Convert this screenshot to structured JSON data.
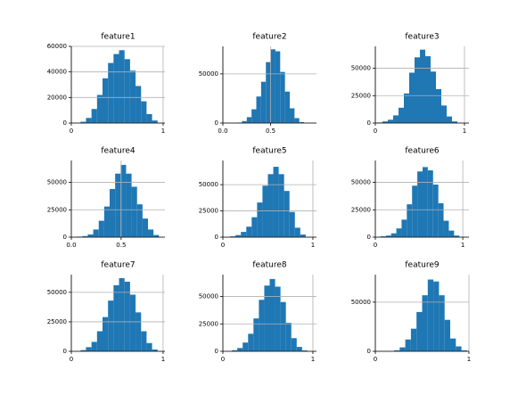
{
  "chart_data": [
    {
      "type": "histogram",
      "title": "feature1",
      "color": "#1f77b4",
      "grid": true,
      "bins": [
        0.1,
        0.16,
        0.22,
        0.28,
        0.34,
        0.4,
        0.46,
        0.52,
        0.58,
        0.64,
        0.7,
        0.76,
        0.82,
        0.88,
        0.94
      ],
      "values": [
        1000,
        4000,
        11000,
        22000,
        35000,
        47000,
        54000,
        57000,
        50000,
        41000,
        29000,
        17000,
        7000,
        2000
      ],
      "xlim": [
        0,
        1.02
      ],
      "xticks": [
        0,
        1
      ],
      "ylim": [
        0,
        60000
      ],
      "yticks": [
        0,
        20000,
        40000,
        60000
      ]
    },
    {
      "type": "histogram",
      "title": "feature2",
      "color": "#1f77b4",
      "grid": true,
      "bins": [
        0.15,
        0.2,
        0.25,
        0.3,
        0.35,
        0.4,
        0.45,
        0.5,
        0.55,
        0.6,
        0.65,
        0.7,
        0.75,
        0.8,
        0.85
      ],
      "values": [
        500,
        2000,
        6000,
        14000,
        27000,
        42000,
        62000,
        75000,
        73000,
        52000,
        32000,
        15000,
        5000,
        1000
      ],
      "xlim": [
        0,
        0.98
      ],
      "xticks": [
        {
          "value": 0,
          "label": "0.0"
        },
        0.5
      ],
      "ylim": [
        0,
        78000
      ],
      "yticks": [
        0,
        50000
      ]
    },
    {
      "type": "histogram",
      "title": "feature3",
      "color": "#1f77b4",
      "grid": true,
      "bins": [
        0.02,
        0.08,
        0.14,
        0.2,
        0.26,
        0.32,
        0.38,
        0.44,
        0.5,
        0.56,
        0.62,
        0.68,
        0.74,
        0.8,
        0.86,
        0.92
      ],
      "values": [
        500,
        1500,
        3000,
        7000,
        14000,
        27000,
        46000,
        60000,
        67000,
        61000,
        47000,
        31000,
        16000,
        6000,
        1500
      ],
      "xlim": [
        0,
        1.05
      ],
      "xticks": [
        0,
        1
      ],
      "ylim": [
        0,
        70000
      ],
      "yticks": [
        0,
        25000,
        50000
      ]
    },
    {
      "type": "histogram",
      "title": "feature4",
      "color": "#1f77b4",
      "grid": true,
      "bins": [
        0.055,
        0.11,
        0.165,
        0.22,
        0.275,
        0.33,
        0.385,
        0.44,
        0.495,
        0.55,
        0.605,
        0.66,
        0.715,
        0.77,
        0.825,
        0.88
      ],
      "values": [
        500,
        1000,
        2500,
        7000,
        15000,
        28000,
        44000,
        58000,
        66000,
        58000,
        46000,
        30000,
        17000,
        7000,
        2000
      ],
      "xlim": [
        0,
        0.94
      ],
      "xticks": [
        {
          "value": 0,
          "label": "0.0"
        },
        0.5
      ],
      "ylim": [
        0,
        70000
      ],
      "yticks": [
        0,
        25000,
        50000
      ]
    },
    {
      "type": "histogram",
      "title": "feature5",
      "color": "#1f77b4",
      "grid": true,
      "bins": [
        0.02,
        0.08,
        0.14,
        0.2,
        0.26,
        0.32,
        0.38,
        0.44,
        0.5,
        0.56,
        0.62,
        0.68,
        0.74,
        0.8,
        0.86,
        0.92
      ],
      "values": [
        300,
        800,
        2000,
        5000,
        10000,
        19000,
        33000,
        49000,
        60000,
        67000,
        60000,
        44000,
        24000,
        9000,
        2500
      ],
      "xlim": [
        0,
        1.04
      ],
      "xticks": [
        0,
        1
      ],
      "ylim": [
        0,
        73000
      ],
      "yticks": [
        0,
        25000,
        50000
      ]
    },
    {
      "type": "histogram",
      "title": "feature6",
      "color": "#1f77b4",
      "grid": true,
      "bins": [
        0.0,
        0.06,
        0.12,
        0.18,
        0.24,
        0.3,
        0.36,
        0.42,
        0.48,
        0.54,
        0.6,
        0.66,
        0.72,
        0.78,
        0.84,
        0.9,
        0.96
      ],
      "values": [
        300,
        800,
        1500,
        3500,
        8000,
        16000,
        30000,
        47000,
        60000,
        64000,
        61000,
        48000,
        31000,
        15000,
        6000,
        1500
      ],
      "xlim": [
        0,
        1.07
      ],
      "xticks": [
        0,
        1
      ],
      "ylim": [
        0,
        70000
      ],
      "yticks": [
        0,
        25000,
        50000
      ]
    },
    {
      "type": "histogram",
      "title": "feature7",
      "color": "#1f77b4",
      "grid": true,
      "bins": [
        0.1,
        0.16,
        0.22,
        0.28,
        0.34,
        0.4,
        0.46,
        0.52,
        0.58,
        0.64,
        0.7,
        0.76,
        0.82,
        0.88,
        0.94
      ],
      "values": [
        1000,
        3500,
        8000,
        17000,
        29000,
        43000,
        56000,
        62000,
        59000,
        48000,
        33000,
        17000,
        7000,
        1500
      ],
      "xlim": [
        0,
        1.02
      ],
      "xticks": [
        0,
        1
      ],
      "ylim": [
        0,
        65000
      ],
      "yticks": [
        0,
        25000,
        50000
      ]
    },
    {
      "type": "histogram",
      "title": "feature8",
      "color": "#1f77b4",
      "grid": true,
      "bins": [
        0.1,
        0.16,
        0.22,
        0.28,
        0.34,
        0.4,
        0.46,
        0.52,
        0.58,
        0.64,
        0.7,
        0.76,
        0.82,
        0.88,
        0.94
      ],
      "values": [
        1000,
        3000,
        8000,
        16000,
        30000,
        47000,
        60000,
        66000,
        59000,
        45000,
        26000,
        12000,
        4000,
        800
      ],
      "xlim": [
        0,
        1.04
      ],
      "xticks": [
        0,
        1
      ],
      "ylim": [
        0,
        70000
      ],
      "yticks": [
        0,
        25000,
        50000
      ]
    },
    {
      "type": "histogram",
      "title": "feature9",
      "color": "#1f77b4",
      "grid": true,
      "bins": [
        0.2,
        0.26,
        0.32,
        0.38,
        0.44,
        0.5,
        0.56,
        0.62,
        0.68,
        0.74,
        0.8,
        0.86,
        0.92,
        0.98
      ],
      "values": [
        1000,
        4000,
        12000,
        23000,
        40000,
        57000,
        73000,
        71000,
        57000,
        32000,
        13000,
        5000,
        1000
      ],
      "xlim": [
        0,
        1.0
      ],
      "xticks": [
        0,
        1
      ],
      "ylim": [
        0,
        78000
      ],
      "yticks": [
        0,
        50000
      ]
    }
  ]
}
